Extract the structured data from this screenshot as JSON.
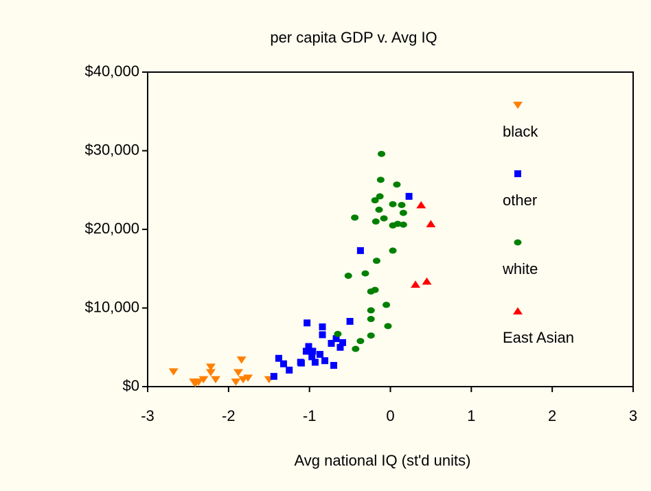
{
  "chart_data": {
    "type": "scatter",
    "title": "per capita GDP  v. Avg IQ",
    "x_label": "Avg national IQ (st'd units)",
    "xlim": [
      -3,
      3
    ],
    "xticks": [
      -3,
      -2,
      -1,
      0,
      1,
      2,
      3
    ],
    "ylim": [
      0,
      40000
    ],
    "yticks": [
      {
        "value": 0,
        "label": "$0"
      },
      {
        "value": 10000,
        "label": "$10,000"
      },
      {
        "value": 20000,
        "label": "$20,000"
      },
      {
        "value": 30000,
        "label": "$30,000"
      },
      {
        "value": 40000,
        "label": "$40,000"
      }
    ],
    "legend": "right",
    "series": [
      {
        "name": "black",
        "color": "#ff8000",
        "marker": "triangle-down",
        "x": [
          -2.68,
          -2.43,
          -2.41,
          -2.37,
          -2.31,
          -2.22,
          -2.22,
          -2.16,
          -1.91,
          -1.88,
          -1.84,
          -1.82,
          -1.76,
          -1.5
        ],
        "values": [
          1900,
          600,
          400,
          600,
          900,
          2500,
          1800,
          900,
          600,
          1800,
          3400,
          900,
          1100,
          900
        ]
      },
      {
        "name": "other",
        "color": "#0000ff",
        "marker": "square",
        "x": [
          -1.44,
          -1.38,
          -1.32,
          -1.25,
          -1.11,
          -1.1,
          -1.04,
          -1.03,
          -1.01,
          -0.97,
          -0.96,
          -0.93,
          -0.87,
          -0.84,
          -0.84,
          -0.81,
          -0.73,
          -0.7,
          -0.67,
          -0.62,
          -0.59,
          -0.5,
          -0.37,
          0.23
        ],
        "values": [
          1300,
          3600,
          2900,
          2100,
          3100,
          3000,
          4500,
          8100,
          5100,
          3800,
          4500,
          3100,
          4100,
          7600,
          6600,
          3300,
          5500,
          2700,
          6100,
          5000,
          5600,
          8300,
          17300,
          24200
        ]
      },
      {
        "name": "white",
        "color": "#008000",
        "marker": "circle",
        "x": [
          -0.65,
          -0.52,
          -0.44,
          -0.43,
          -0.37,
          -0.31,
          -0.24,
          -0.24,
          -0.24,
          -0.24,
          -0.19,
          -0.19,
          -0.18,
          -0.17,
          -0.14,
          -0.13,
          -0.12,
          -0.11,
          -0.08,
          -0.05,
          -0.03,
          0.03,
          0.03,
          0.03,
          0.08,
          0.09,
          0.14,
          0.16,
          0.16
        ],
        "values": [
          6700,
          14100,
          21500,
          4800,
          5800,
          14400,
          6500,
          8600,
          9700,
          12100,
          12300,
          23700,
          21000,
          16000,
          22500,
          24200,
          26300,
          29600,
          21400,
          10400,
          7700,
          17300,
          23200,
          20500,
          25700,
          20700,
          23100,
          22100,
          20600
        ]
      },
      {
        "name": "East Asian",
        "color": "#ff0000",
        "marker": "triangle-up",
        "x": [
          0.31,
          0.38,
          0.45,
          0.5
        ],
        "values": [
          13000,
          23100,
          13400,
          20700
        ]
      }
    ]
  }
}
